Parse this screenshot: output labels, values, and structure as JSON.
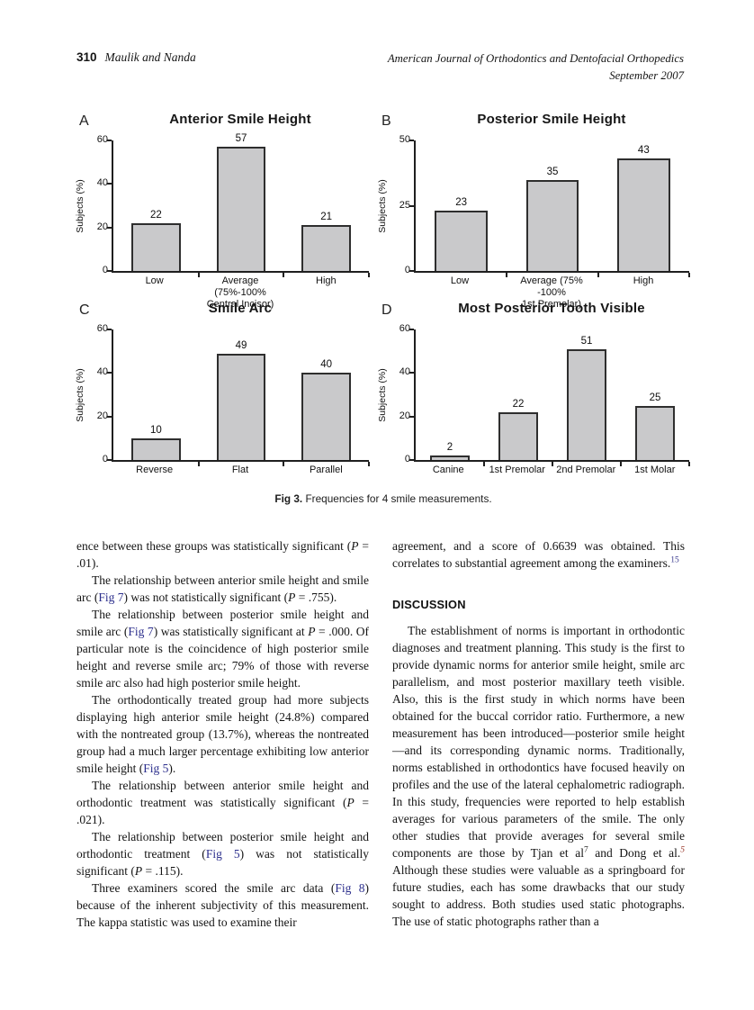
{
  "page": {
    "number": "310",
    "running_authors": "Maulik and Nanda",
    "journal_line1": "American Journal of Orthodontics and Dentofacial Orthopedics",
    "journal_line2": "September 2007"
  },
  "colors": {
    "fig_link": "#2b2e8c",
    "ref_blue": "#3a3a8f",
    "ref_dark": "#30302f",
    "ref_red": "#99392b",
    "bar_fill": "#c9c9cb",
    "bar_border": "#2e2e2e",
    "axis": "#1f1f1f"
  },
  "figure": {
    "caption_label": "Fig 3.",
    "caption_text": " Frequencies for 4 smile measurements."
  },
  "chart_data": [
    {
      "type": "bar",
      "panel": "A",
      "title": "Anterior Smile Height",
      "ylabel": "Subjects (%)",
      "ylim": [
        0,
        60
      ],
      "yticks": [
        0,
        20,
        40,
        60
      ],
      "categories": [
        "Low",
        "Average (75%-100%\nCentral Incisor)",
        "High"
      ],
      "values": [
        22,
        57,
        21
      ],
      "grid": false,
      "legend": false
    },
    {
      "type": "bar",
      "panel": "B",
      "title": "Posterior Smile Height",
      "ylabel": "Subjects (%)",
      "ylim": [
        0,
        50
      ],
      "yticks": [
        0,
        25,
        50
      ],
      "categories": [
        "Low",
        "Average (75% -100%\n1st Premolar)",
        "High"
      ],
      "values": [
        23,
        35,
        43
      ],
      "grid": false,
      "legend": false
    },
    {
      "type": "bar",
      "panel": "C",
      "title": "Smile Arc",
      "ylabel": "Subjects (%)",
      "ylim": [
        0,
        60
      ],
      "yticks": [
        0,
        20,
        40,
        60
      ],
      "categories": [
        "Reverse",
        "Flat",
        "Parallel"
      ],
      "values": [
        10,
        49,
        40
      ],
      "grid": false,
      "legend": false
    },
    {
      "type": "bar",
      "panel": "D",
      "title": "Most Posterior Tooth Visible",
      "ylabel": "Subjects (%)",
      "ylim": [
        0,
        60
      ],
      "yticks": [
        0,
        20,
        40,
        60
      ],
      "categories": [
        "Canine",
        "1st Premolar",
        "2nd Premolar",
        "1st Molar"
      ],
      "values": [
        2,
        22,
        51,
        25
      ],
      "grid": false,
      "legend": false
    }
  ],
  "body": {
    "left_column": [
      {
        "type": "p",
        "indent": false,
        "segments": [
          {
            "t": "ence between these groups was statistically significant ("
          },
          {
            "t": "P",
            "s": "italic"
          },
          {
            "t": " = .01)."
          }
        ]
      },
      {
        "type": "p",
        "indent": true,
        "segments": [
          {
            "t": "The relationship between anterior smile height and smile arc ("
          },
          {
            "t": "Fig 7",
            "s": "link"
          },
          {
            "t": ") was not statistically significant ("
          },
          {
            "t": "P",
            "s": "italic"
          },
          {
            "t": " = .755)."
          }
        ]
      },
      {
        "type": "p",
        "indent": true,
        "segments": [
          {
            "t": "The relationship between posterior smile height and smile arc ("
          },
          {
            "t": "Fig 7",
            "s": "link"
          },
          {
            "t": ") was statistically significant at "
          },
          {
            "t": "P",
            "s": "italic"
          },
          {
            "t": " = .000. Of particular note is the coincidence of high posterior smile height and reverse smile arc; 79% of those with reverse smile arc also had high posterior smile height."
          }
        ]
      },
      {
        "type": "p",
        "indent": true,
        "segments": [
          {
            "t": "The orthodontically treated group had more subjects displaying high anterior smile height (24.8%) compared with the nontreated group (13.7%), whereas the nontreated group had a much larger percentage exhibiting low anterior smile height ("
          },
          {
            "t": "Fig 5",
            "s": "link"
          },
          {
            "t": ")."
          }
        ]
      },
      {
        "type": "p",
        "indent": true,
        "segments": [
          {
            "t": "The relationship between anterior smile height and orthodontic treatment was statistically significant ("
          },
          {
            "t": "P",
            "s": "italic"
          },
          {
            "t": " = .021)."
          }
        ]
      },
      {
        "type": "p",
        "indent": true,
        "segments": [
          {
            "t": "The relationship between posterior smile height and orthodontic treatment ("
          },
          {
            "t": "Fig 5",
            "s": "link"
          },
          {
            "t": ") was not statistically significant ("
          },
          {
            "t": "P",
            "s": "italic"
          },
          {
            "t": " = .115)."
          }
        ]
      },
      {
        "type": "p",
        "indent": true,
        "segments": [
          {
            "t": "Three examiners scored the smile arc data ("
          },
          {
            "t": "Fig 8",
            "s": "link"
          },
          {
            "t": ") because of the inherent subjectivity of this measurement. The kappa statistic was used to examine their"
          }
        ]
      }
    ],
    "right_column": [
      {
        "type": "p",
        "indent": false,
        "segments": [
          {
            "t": "agreement, and a score of 0.6639 was obtained. This correlates to substantial agreement among the examiners."
          },
          {
            "t": "15",
            "s": "sup-blue"
          }
        ]
      },
      {
        "type": "heading",
        "text": "DISCUSSION"
      },
      {
        "type": "p",
        "indent": true,
        "segments": [
          {
            "t": "The establishment of norms is important in orthodontic diagnoses and treatment planning. This study is the first to provide dynamic norms for anterior smile height, smile arc parallelism, and most posterior maxillary teeth visible. Also, this is the first study in which norms have been obtained for the buccal corridor ratio. Furthermore, a new measurement has been introduced—posterior smile height—and its corresponding dynamic norms. Traditionally, norms established in orthodontics have focused heavily on profiles and the use of the lateral cephalometric radiograph. In this study, frequencies were reported to help establish averages for various parameters of the smile. The only other studies that provide averages for several smile components are those by Tjan et al"
          },
          {
            "t": "7",
            "s": "sup-dark"
          },
          {
            "t": " and Dong et al."
          },
          {
            "t": "5",
            "s": "sup-red"
          },
          {
            "t": " Although these studies were valuable as a springboard for future studies, each has some drawbacks that our study sought to address. Both studies used static photographs. The use of static photographs rather than a"
          }
        ]
      }
    ]
  }
}
